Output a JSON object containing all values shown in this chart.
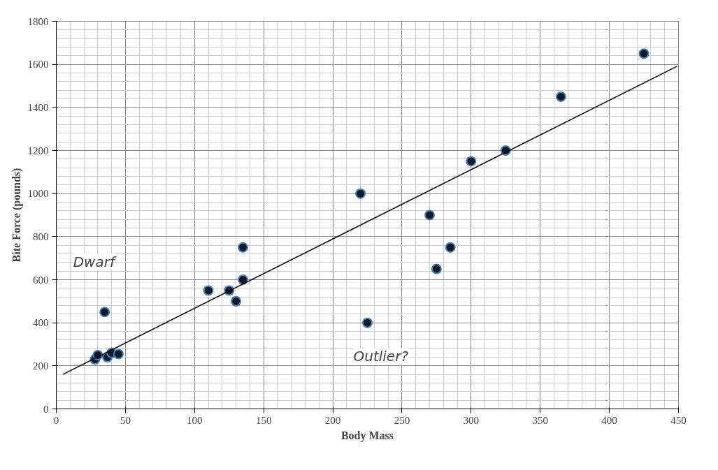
{
  "chart_data": {
    "type": "scatter",
    "xlabel": "Body Mass",
    "ylabel": "Bite Force (pounds)",
    "xlim": [
      0,
      450
    ],
    "ylim": [
      0,
      1800
    ],
    "xticks": [
      0,
      50,
      100,
      150,
      200,
      250,
      300,
      350,
      400,
      450
    ],
    "yticks": [
      0,
      200,
      400,
      600,
      800,
      1000,
      1200,
      1400,
      1600,
      1800
    ],
    "grid": true,
    "series": [
      {
        "marker": "circle",
        "color": "#0d1b2a",
        "x": [
          28,
          30,
          37,
          40,
          45,
          35,
          110,
          125,
          130,
          135,
          135,
          220,
          225,
          270,
          275,
          285,
          300,
          325,
          365,
          425
        ],
        "values": [
          230,
          250,
          240,
          260,
          255,
          450,
          550,
          550,
          500,
          750,
          600,
          1000,
          400,
          900,
          650,
          750,
          1150,
          1200,
          1450,
          1650
        ]
      },
      {
        "type": "line",
        "color": "#000000",
        "x": [
          5,
          449
        ],
        "values": [
          161,
          1591
        ]
      }
    ],
    "annotations": [
      {
        "text": "Dwarf",
        "x": 35,
        "y": 450
      },
      {
        "text": "Outlier?",
        "x": 225,
        "y": 400
      }
    ]
  }
}
